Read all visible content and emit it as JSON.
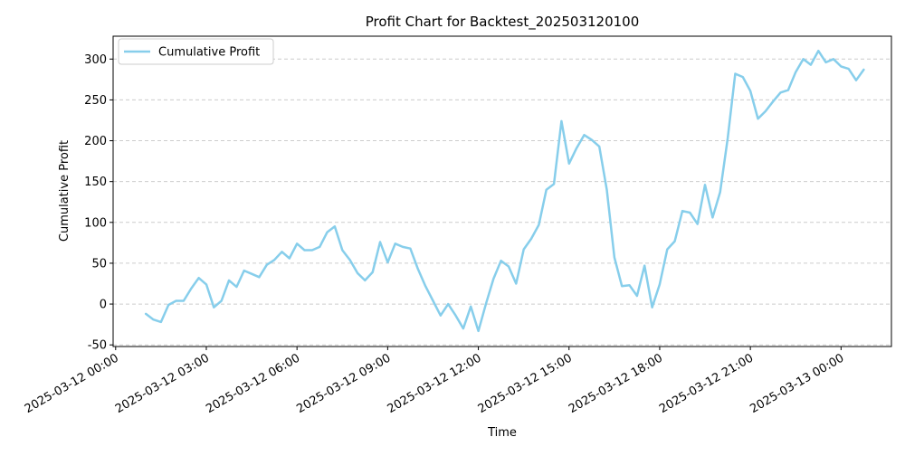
{
  "chart_data": {
    "type": "line",
    "title": "Profit Chart for Backtest_202503120100",
    "xlabel": "Time",
    "ylabel": "Cumulative Profit",
    "xlim": [
      "2025-03-11 23:55",
      "2025-03-13 01:40"
    ],
    "ylim": [
      -52,
      328
    ],
    "grid": "y-dashed",
    "legend": "top-left",
    "x_ticks": [
      {
        "t": "2025-03-12 00:00",
        "label": "2025-03-12 00:00"
      },
      {
        "t": "2025-03-12 03:00",
        "label": "2025-03-12 03:00"
      },
      {
        "t": "2025-03-12 06:00",
        "label": "2025-03-12 06:00"
      },
      {
        "t": "2025-03-12 09:00",
        "label": "2025-03-12 09:00"
      },
      {
        "t": "2025-03-12 12:00",
        "label": "2025-03-12 12:00"
      },
      {
        "t": "2025-03-12 15:00",
        "label": "2025-03-12 15:00"
      },
      {
        "t": "2025-03-12 18:00",
        "label": "2025-03-12 18:00"
      },
      {
        "t": "2025-03-12 21:00",
        "label": "2025-03-12 21:00"
      },
      {
        "t": "2025-03-13 00:00",
        "label": "2025-03-13 00:00"
      }
    ],
    "y_ticks": [
      -50,
      0,
      50,
      100,
      150,
      200,
      250,
      300
    ],
    "series": [
      {
        "name": "Cumulative Profit",
        "color": "#87ceeb",
        "points": [
          [
            "2025-03-12 01:00",
            -12
          ],
          [
            "2025-03-12 01:15",
            -19
          ],
          [
            "2025-03-12 01:30",
            -22
          ],
          [
            "2025-03-12 01:45",
            -1
          ],
          [
            "2025-03-12 02:00",
            4
          ],
          [
            "2025-03-12 02:15",
            4
          ],
          [
            "2025-03-12 02:30",
            19
          ],
          [
            "2025-03-12 02:45",
            32
          ],
          [
            "2025-03-12 03:00",
            24
          ],
          [
            "2025-03-12 03:15",
            -4
          ],
          [
            "2025-03-12 03:30",
            4
          ],
          [
            "2025-03-12 03:45",
            29
          ],
          [
            "2025-03-12 04:00",
            21
          ],
          [
            "2025-03-12 04:15",
            41
          ],
          [
            "2025-03-12 04:30",
            37
          ],
          [
            "2025-03-12 04:45",
            33
          ],
          [
            "2025-03-12 05:00",
            48
          ],
          [
            "2025-03-12 05:15",
            54
          ],
          [
            "2025-03-12 05:30",
            64
          ],
          [
            "2025-03-12 05:45",
            56
          ],
          [
            "2025-03-12 06:00",
            74
          ],
          [
            "2025-03-12 06:15",
            66
          ],
          [
            "2025-03-12 06:30",
            66
          ],
          [
            "2025-03-12 06:45",
            70
          ],
          [
            "2025-03-12 07:00",
            88
          ],
          [
            "2025-03-12 07:15",
            95
          ],
          [
            "2025-03-12 07:30",
            66
          ],
          [
            "2025-03-12 07:45",
            54
          ],
          [
            "2025-03-12 08:00",
            38
          ],
          [
            "2025-03-12 08:15",
            29
          ],
          [
            "2025-03-12 08:30",
            39
          ],
          [
            "2025-03-12 08:45",
            76
          ],
          [
            "2025-03-12 09:00",
            51
          ],
          [
            "2025-03-12 09:15",
            74
          ],
          [
            "2025-03-12 09:30",
            70
          ],
          [
            "2025-03-12 09:45",
            68
          ],
          [
            "2025-03-12 10:00",
            43
          ],
          [
            "2025-03-12 10:15",
            22
          ],
          [
            "2025-03-12 10:30",
            4
          ],
          [
            "2025-03-12 10:45",
            -14
          ],
          [
            "2025-03-12 11:00",
            0
          ],
          [
            "2025-03-12 11:15",
            -14
          ],
          [
            "2025-03-12 11:30",
            -30
          ],
          [
            "2025-03-12 11:45",
            -3
          ],
          [
            "2025-03-12 12:00",
            -33
          ],
          [
            "2025-03-12 12:15",
            0
          ],
          [
            "2025-03-12 12:30",
            31
          ],
          [
            "2025-03-12 12:45",
            53
          ],
          [
            "2025-03-12 13:00",
            46
          ],
          [
            "2025-03-12 13:15",
            25
          ],
          [
            "2025-03-12 13:30",
            67
          ],
          [
            "2025-03-12 13:45",
            80
          ],
          [
            "2025-03-12 14:00",
            97
          ],
          [
            "2025-03-12 14:15",
            140
          ],
          [
            "2025-03-12 14:30",
            147
          ],
          [
            "2025-03-12 14:45",
            224
          ],
          [
            "2025-03-12 15:00",
            172
          ],
          [
            "2025-03-12 15:15",
            191
          ],
          [
            "2025-03-12 15:30",
            207
          ],
          [
            "2025-03-12 15:45",
            201
          ],
          [
            "2025-03-12 16:00",
            193
          ],
          [
            "2025-03-12 16:15",
            140
          ],
          [
            "2025-03-12 16:30",
            57
          ],
          [
            "2025-03-12 16:45",
            22
          ],
          [
            "2025-03-12 17:00",
            23
          ],
          [
            "2025-03-12 17:15",
            10
          ],
          [
            "2025-03-12 17:30",
            47
          ],
          [
            "2025-03-12 17:45",
            -4
          ],
          [
            "2025-03-12 18:00",
            24
          ],
          [
            "2025-03-12 18:15",
            67
          ],
          [
            "2025-03-12 18:30",
            77
          ],
          [
            "2025-03-12 18:45",
            114
          ],
          [
            "2025-03-12 19:00",
            112
          ],
          [
            "2025-03-12 19:15",
            98
          ],
          [
            "2025-03-12 19:30",
            146
          ],
          [
            "2025-03-12 19:45",
            106
          ],
          [
            "2025-03-12 20:00",
            137
          ],
          [
            "2025-03-12 20:15",
            203
          ],
          [
            "2025-03-12 20:30",
            282
          ],
          [
            "2025-03-12 20:45",
            278
          ],
          [
            "2025-03-12 21:00",
            261
          ],
          [
            "2025-03-12 21:15",
            227
          ],
          [
            "2025-03-12 21:30",
            236
          ],
          [
            "2025-03-12 21:45",
            248
          ],
          [
            "2025-03-12 22:00",
            259
          ],
          [
            "2025-03-12 22:15",
            262
          ],
          [
            "2025-03-12 22:30",
            284
          ],
          [
            "2025-03-12 22:45",
            300
          ],
          [
            "2025-03-12 23:00",
            293
          ],
          [
            "2025-03-12 23:15",
            310
          ],
          [
            "2025-03-12 23:30",
            296
          ],
          [
            "2025-03-12 23:45",
            300
          ],
          [
            "2025-03-13 00:00",
            291
          ],
          [
            "2025-03-13 00:15",
            288
          ],
          [
            "2025-03-13 00:30",
            274
          ],
          [
            "2025-03-13 00:45",
            287
          ]
        ]
      }
    ]
  }
}
